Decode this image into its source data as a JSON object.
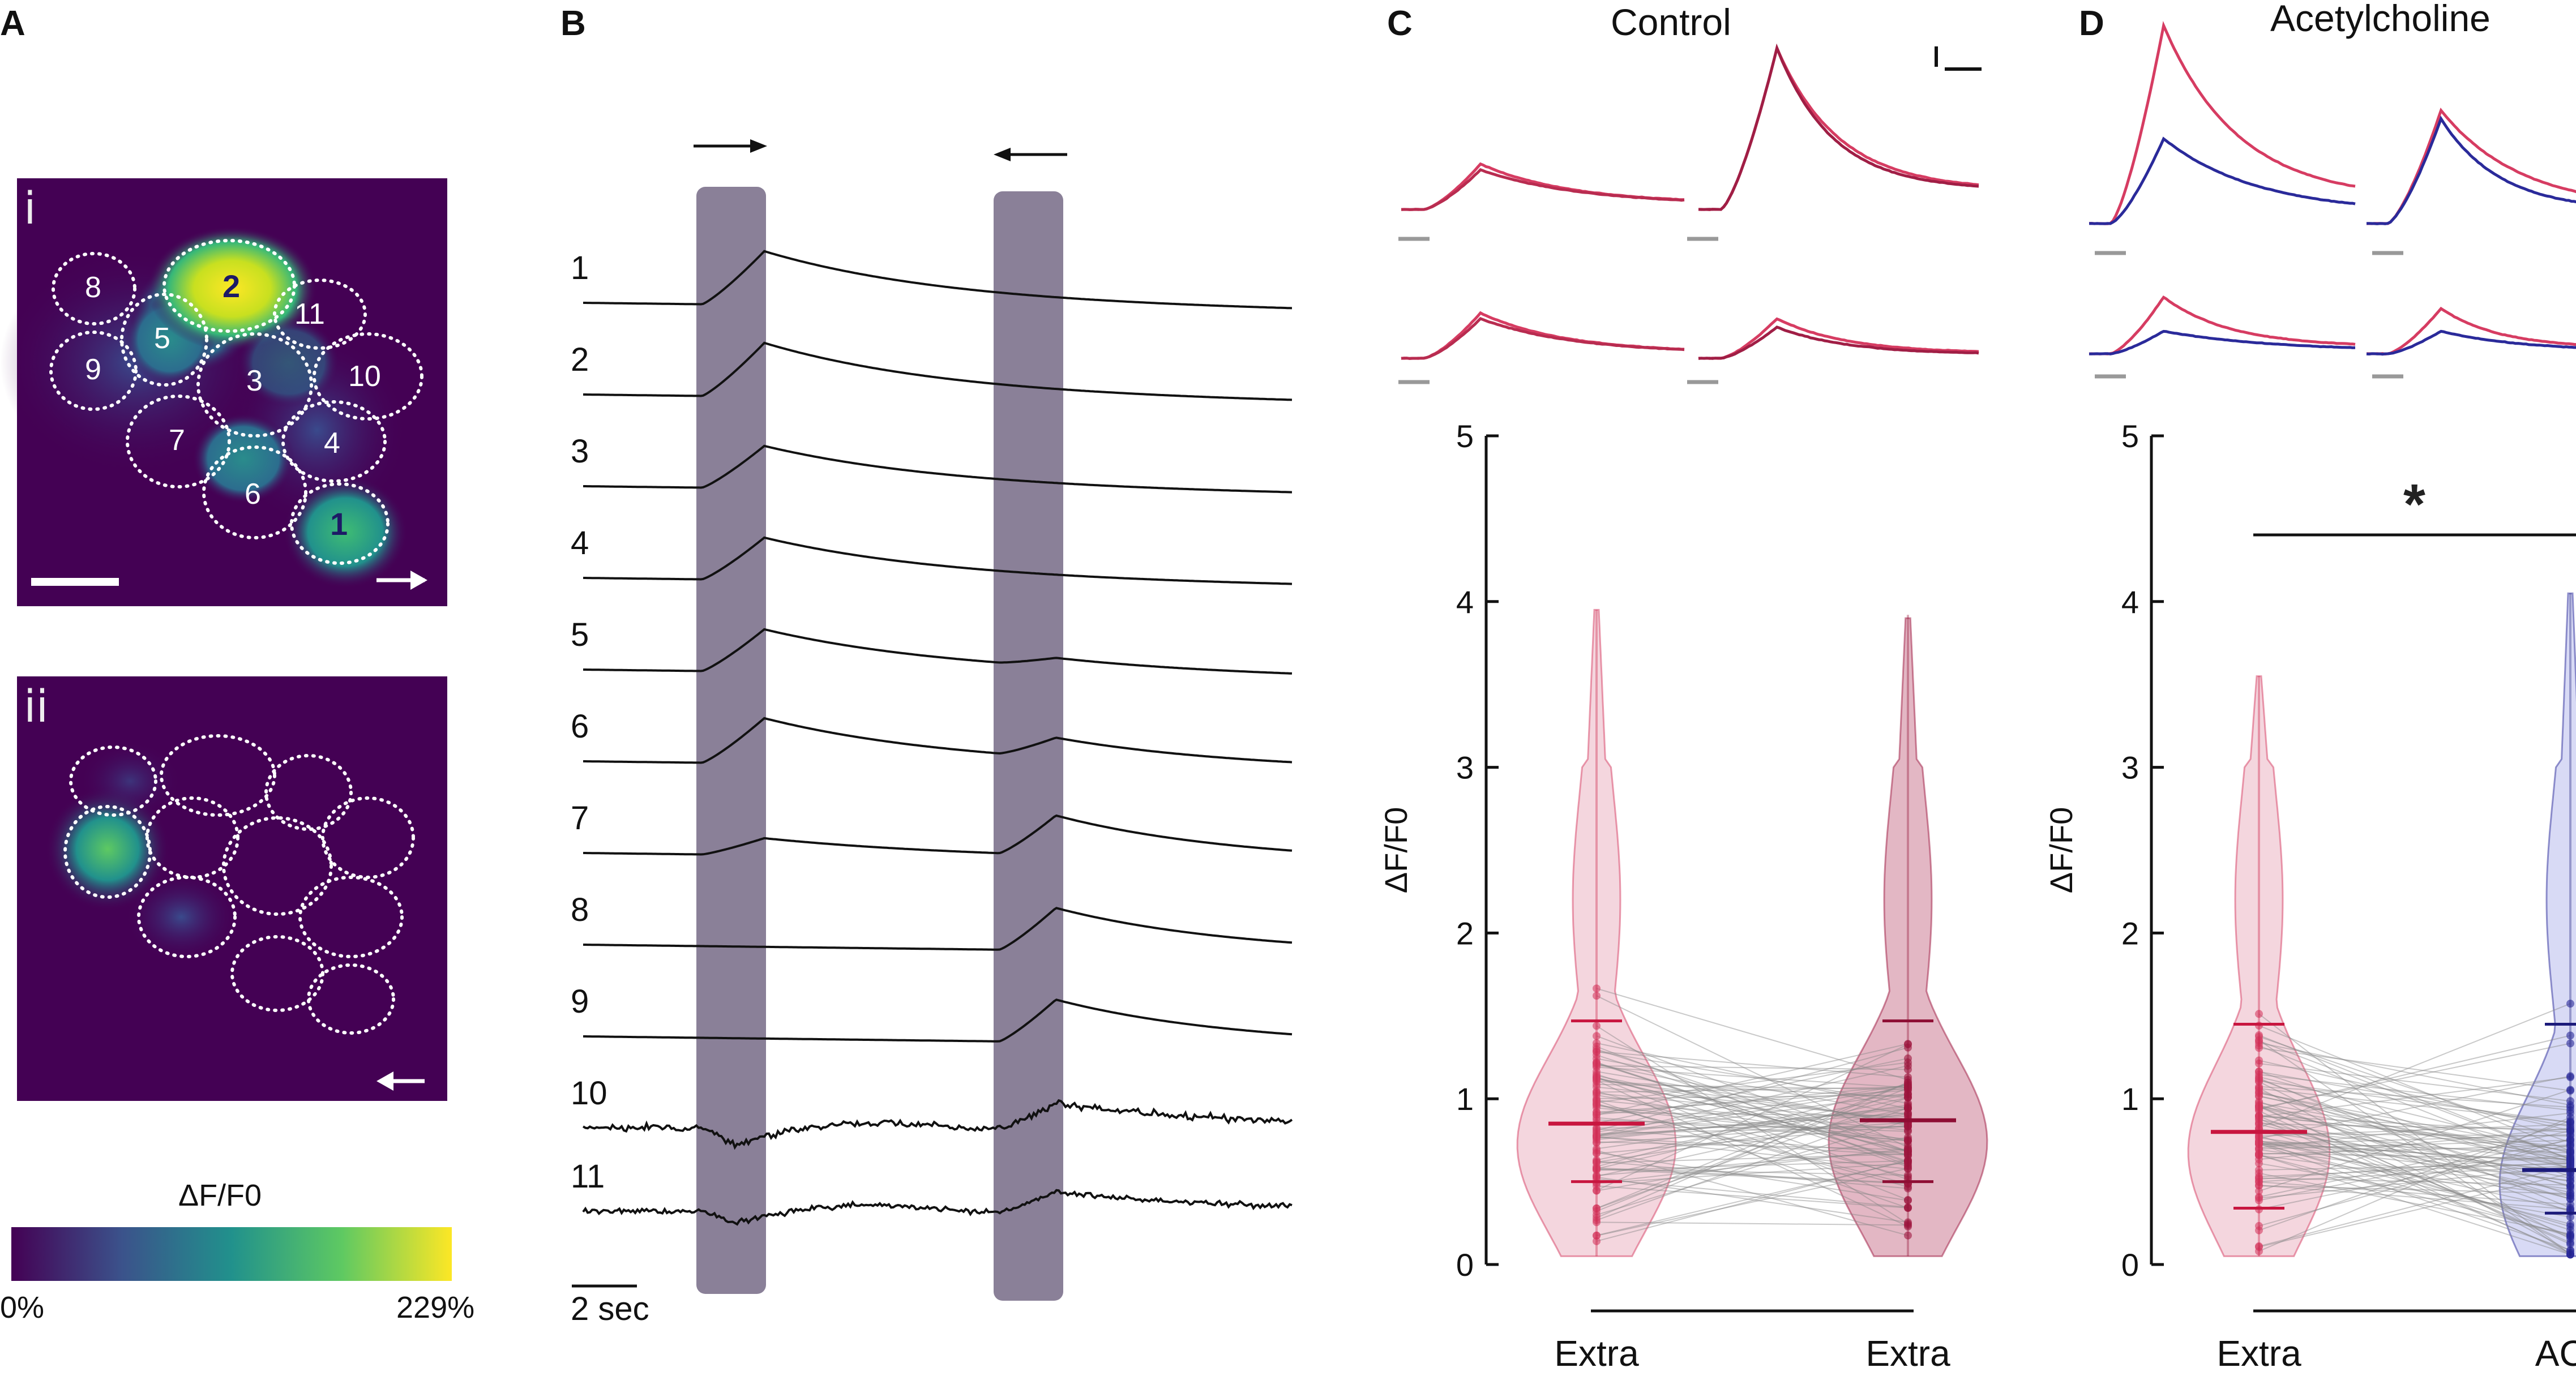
{
  "panel_labels": [
    "A",
    "B",
    "C",
    "D"
  ],
  "panelA": {
    "subpanels": [
      "i",
      "ii"
    ],
    "cells": [
      "1",
      "2",
      "3",
      "4",
      "5",
      "6",
      "7",
      "8",
      "9",
      "10",
      "11"
    ],
    "colorbar": {
      "title": "ΔF/F0",
      "min_label": "0%",
      "max_label": "229%"
    }
  },
  "panelB": {
    "row_labels": [
      "1",
      "2",
      "3",
      "4",
      "5",
      "6",
      "7",
      "8",
      "9",
      "10",
      "11"
    ],
    "scale_label": "2 sec",
    "stimulus_arrows": [
      "→",
      "←"
    ]
  },
  "panelC": {
    "title": "Control"
  },
  "panelD": {
    "title": "Acetylcholine",
    "significance": "*"
  },
  "colors": {
    "extra": "#d63c62",
    "extra_dark": "#9e1840",
    "ach": "#2a2a9a",
    "stim_band": "#8a8098",
    "viridis_low": "#440154",
    "viridis_high": "#fde725"
  },
  "chart_data": [
    {
      "id": "C",
      "type": "violin",
      "title": "Control",
      "ylabel": "ΔF/F0",
      "ylim": [
        0,
        5
      ],
      "yticks": [
        "0",
        "1",
        "2",
        "3",
        "4",
        "5"
      ],
      "categories": [
        "Extra",
        "Extra"
      ],
      "stats": [
        {
          "median": 0.85,
          "q1": 0.5,
          "q3": 1.47,
          "max": 3.95
        },
        {
          "median": 0.87,
          "q1": 0.5,
          "q3": 1.47,
          "max": 3.92
        }
      ]
    },
    {
      "id": "D",
      "type": "violin",
      "title": "Acetylcholine",
      "ylabel": "ΔF/F0",
      "ylim": [
        0,
        5
      ],
      "yticks": [
        "0",
        "1",
        "2",
        "3",
        "4",
        "5"
      ],
      "categories": [
        "Extra",
        "ACh"
      ],
      "significance": "*",
      "stats": [
        {
          "median": 0.8,
          "q1": 0.34,
          "q3": 1.45,
          "max": 3.55
        },
        {
          "median": 0.57,
          "q1": 0.31,
          "q3": 1.45,
          "max": 4.05
        }
      ]
    }
  ]
}
